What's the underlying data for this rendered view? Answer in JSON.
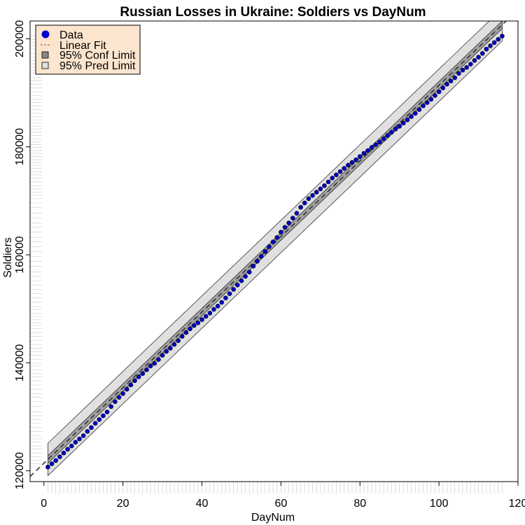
{
  "chart_data": {
    "type": "scatter",
    "title": "Russian Losses in Ukraine: Soldiers vs DayNum",
    "xlabel": "DayNum",
    "ylabel": "Soldiers",
    "xlim": [
      -3.5,
      120
    ],
    "ylim": [
      118000,
      203300
    ],
    "x_ticks": [
      0,
      20,
      40,
      60,
      80,
      100,
      120
    ],
    "y_ticks": [
      120000,
      140000,
      160000,
      180000,
      200000
    ],
    "grid": false,
    "legend": {
      "position": "top-left",
      "background": "#FBE5CE",
      "entries": [
        {
          "label": "Data",
          "kind": "point"
        },
        {
          "label": "Linear Fit",
          "kind": "dashed-line"
        },
        {
          "label": "95% Conf Limit",
          "kind": "dark-box"
        },
        {
          "label": "95% Pred Limit",
          "kind": "light-box"
        }
      ]
    },
    "series": [
      {
        "name": "Data",
        "marker_color": "#0000CC",
        "x": [
          1,
          2,
          3,
          4,
          5,
          6,
          7,
          8,
          9,
          10,
          11,
          12,
          13,
          14,
          15,
          16,
          17,
          18,
          19,
          20,
          21,
          22,
          23,
          24,
          25,
          26,
          27,
          28,
          29,
          30,
          31,
          32,
          33,
          34,
          35,
          36,
          37,
          38,
          39,
          40,
          41,
          42,
          43,
          44,
          45,
          46,
          47,
          48,
          49,
          50,
          51,
          52,
          53,
          54,
          55,
          56,
          57,
          58,
          59,
          60,
          61,
          62,
          63,
          64,
          65,
          66,
          67,
          68,
          69,
          70,
          71,
          72,
          73,
          74,
          75,
          76,
          77,
          78,
          79,
          80,
          81,
          82,
          83,
          84,
          85,
          86,
          87,
          88,
          89,
          90,
          91,
          92,
          93,
          94,
          95,
          96,
          97,
          98,
          99,
          100,
          101,
          102,
          103,
          104,
          105,
          106,
          107,
          108,
          109,
          110,
          111,
          112,
          113,
          114,
          115,
          116
        ],
        "y": [
          120700,
          121300,
          121900,
          122600,
          123300,
          124000,
          124600,
          125300,
          125900,
          126500,
          127300,
          128000,
          128800,
          129500,
          130200,
          130900,
          131900,
          132800,
          133600,
          134300,
          135100,
          135900,
          136700,
          137400,
          138000,
          138700,
          139400,
          139900,
          140600,
          141400,
          142100,
          142700,
          143400,
          144100,
          144900,
          145600,
          146300,
          146900,
          147400,
          148000,
          148600,
          149200,
          149900,
          150500,
          151200,
          152000,
          152800,
          153600,
          154400,
          155200,
          156000,
          156800,
          157900,
          158800,
          159700,
          160600,
          161500,
          162400,
          163200,
          164200,
          165100,
          165900,
          166800,
          167700,
          168800,
          169600,
          170400,
          171000,
          171600,
          172200,
          172800,
          173500,
          174200,
          174800,
          175400,
          176000,
          176600,
          177100,
          177600,
          178200,
          178800,
          179300,
          179900,
          180400,
          180900,
          181500,
          182100,
          182700,
          183300,
          183800,
          184400,
          185000,
          185600,
          186200,
          186900,
          187600,
          188200,
          188800,
          189500,
          190200,
          190900,
          191600,
          192200,
          192800,
          193600,
          194200,
          194700,
          195300,
          196000,
          196600,
          197300,
          198100,
          198700,
          199300,
          199900,
          200500
        ]
      },
      {
        "name": "Linear Fit",
        "line_color": "#333333",
        "intercept": 121400,
        "slope": 700
      }
    ],
    "bands": [
      {
        "name": "95% Conf Limit",
        "color": "#A0A0A0",
        "x_range": [
          1,
          116
        ],
        "half_width": 700
      },
      {
        "name": "95% Pred Limit",
        "color": "#E0E0E0",
        "x_range": [
          1,
          116
        ],
        "half_width": 3000
      }
    ]
  }
}
